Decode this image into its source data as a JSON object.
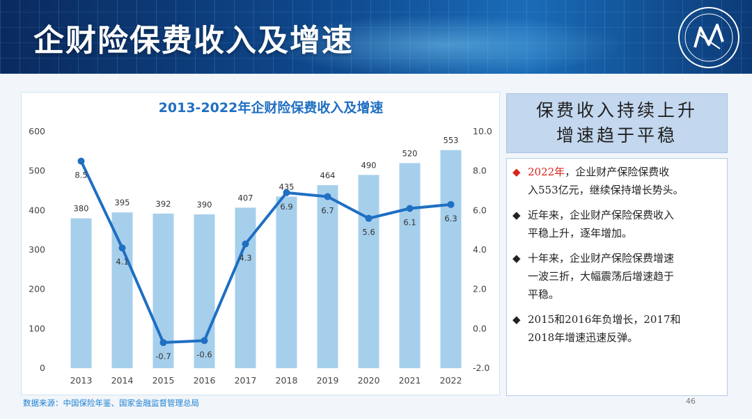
{
  "slide": {
    "title": "企财险保费收入及增速",
    "page_number": "46",
    "source": "数据来源：中国保险年鉴、国家金融监督管理总局"
  },
  "summary": {
    "line1": "保费收入持续上升",
    "line2": "增速趋于平稳"
  },
  "points": [
    {
      "bullet": "◆",
      "bullet_color": "#d9251d",
      "highlight": "2022年",
      "line1_rest": "，企业财产保险保费收",
      "line2": "入553亿元，继续保持增长势头。"
    },
    {
      "bullet": "◆",
      "bullet_color": "#222222",
      "highlight": "",
      "line1_rest": "近年来，企业财产保险保费收入",
      "line2": "平稳上升，逐年增加。"
    },
    {
      "bullet": "◆",
      "bullet_color": "#222222",
      "highlight": "",
      "line1_rest": "十年来，企业财产保险保费增速",
      "line2": "一波三折，大幅震荡后增速趋于",
      "line3": "平稳。"
    },
    {
      "bullet": "◆",
      "bullet_color": "#222222",
      "highlight": "",
      "line1_rest": "2015和2016年负增长，2017和",
      "line2": "2018年增速迅速反弹。"
    }
  ],
  "chart_data": {
    "type": "bar+line",
    "title": "2013-2022年企财险保费收入及增速",
    "categories": [
      "2013",
      "2014",
      "2015",
      "2016",
      "2017",
      "2018",
      "2019",
      "2020",
      "2021",
      "2022"
    ],
    "series": [
      {
        "type": "bar",
        "axis": "left",
        "color": "#a6cfec",
        "values": [
          380,
          395,
          392,
          390,
          407,
          435,
          464,
          490,
          520,
          553
        ]
      },
      {
        "type": "line",
        "axis": "right",
        "color": "#1f6fc2",
        "values": [
          8.5,
          4.1,
          -0.7,
          -0.6,
          4.3,
          6.9,
          6.7,
          5.6,
          6.1,
          6.3
        ]
      }
    ],
    "y_left": {
      "min": 0,
      "max": 600,
      "ticks": [
        0,
        100,
        200,
        300,
        400,
        500,
        600
      ]
    },
    "y_right": {
      "min": -2.0,
      "max": 10.0,
      "ticks": [
        "-2.0",
        "0.0",
        "2.0",
        "4.0",
        "6.0",
        "8.0",
        "10.0"
      ]
    },
    "grid": false,
    "legend": "none"
  }
}
